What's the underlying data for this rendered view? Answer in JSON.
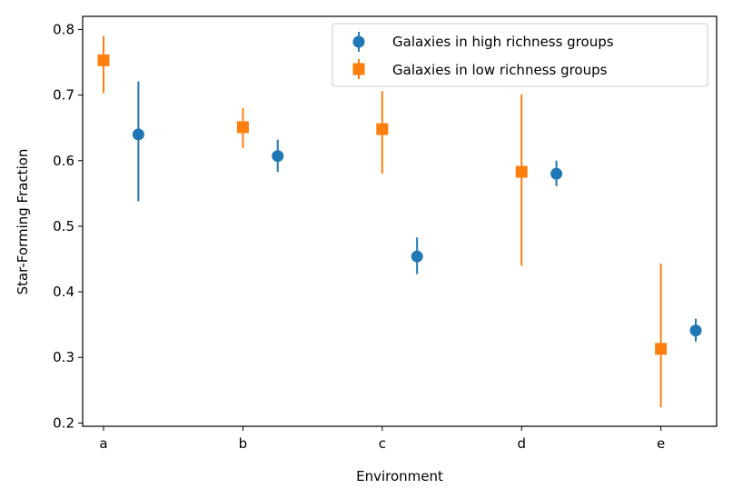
{
  "chart_data": {
    "type": "scatter",
    "title": "",
    "xlabel": "Environment",
    "ylabel": "Star-Forming Fraction",
    "categories": [
      "a",
      "b",
      "c",
      "d",
      "e"
    ],
    "xlim": [
      -0.15,
      4.4
    ],
    "ylim": [
      0.195,
      0.82
    ],
    "yticks": [
      "0.2",
      "0.3",
      "0.4",
      "0.5",
      "0.6",
      "0.7",
      "0.8"
    ],
    "grid": false,
    "legend_position": "top-right",
    "series": [
      {
        "name": "Galaxies in high richness groups",
        "marker": "circle",
        "color": "#1f77b4",
        "x_offset": 0.25,
        "values": [
          0.64,
          0.607,
          0.454,
          0.58,
          0.341
        ],
        "err_low": [
          0.538,
          0.583,
          0.427,
          0.561,
          0.324
        ],
        "err_high": [
          0.721,
          0.632,
          0.483,
          0.6,
          0.359
        ]
      },
      {
        "name": "Galaxies in low richness groups",
        "marker": "square",
        "color": "#ff7f0e",
        "x_offset": 0.0,
        "values": [
          0.753,
          0.651,
          0.648,
          0.583,
          0.313
        ],
        "err_low": [
          0.703,
          0.619,
          0.58,
          0.44,
          0.224
        ],
        "err_high": [
          0.79,
          0.68,
          0.706,
          0.701,
          0.443
        ]
      }
    ]
  }
}
